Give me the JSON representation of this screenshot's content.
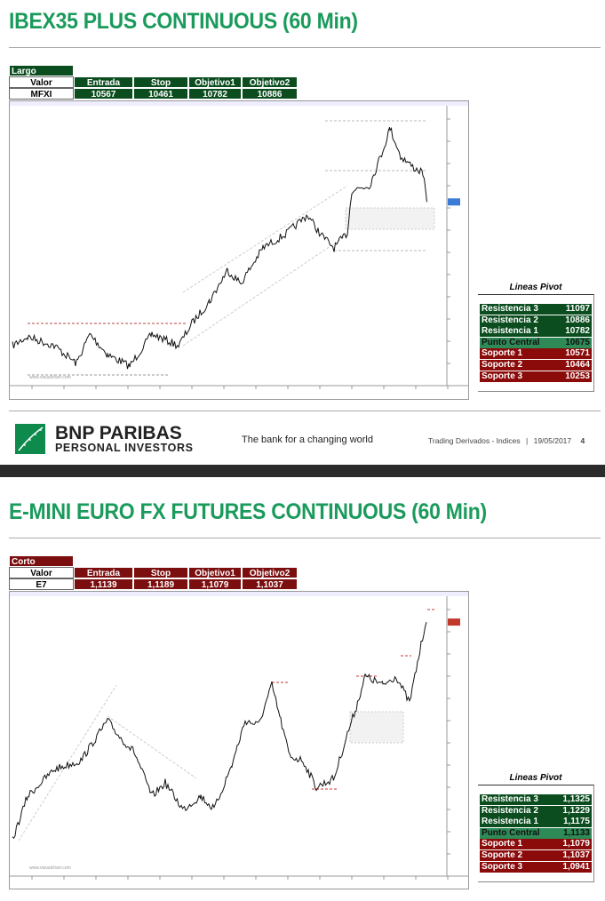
{
  "sections": [
    {
      "title": "IBEX35 PLUS CONTINUOUS (60 Min)",
      "position": "Largo",
      "table": {
        "header": [
          "Valor",
          "Entrada",
          "Stop",
          "Objetivo1",
          "Objetivo2"
        ],
        "row": [
          "MFXI",
          "10567",
          "10461",
          "10782",
          "10886"
        ]
      },
      "watermark": "www.visualchart.com",
      "pivot": {
        "title": "Lineas Pivot",
        "rows": [
          [
            "Resistencia 3",
            "11097"
          ],
          [
            "Resistencia 2",
            "10886"
          ],
          [
            "Resistencia 1",
            "10782"
          ],
          [
            "Punto Central",
            "10675"
          ],
          [
            "Soporte 1",
            "10571"
          ],
          [
            "Soporte 2",
            "10464"
          ],
          [
            "Soporte 3",
            "10253"
          ]
        ]
      }
    },
    {
      "title": "E-MINI EURO FX FUTURES CONTINUOUS (60 Min)",
      "position": "Corto",
      "table": {
        "header": [
          "Valor",
          "Entrada",
          "Stop",
          "Objetivo1",
          "Objetivo2"
        ],
        "row": [
          "E7",
          "1,1139",
          "1,1189",
          "1,1079",
          "1,1037"
        ]
      },
      "watermark": "www.visualchart.com",
      "pivot": {
        "title": "Lineas Pivot",
        "rows": [
          [
            "Resistencia 3",
            "1,1325"
          ],
          [
            "Resistencia 2",
            "1,1229"
          ],
          [
            "Resistencia 1",
            "1,1175"
          ],
          [
            "Punto Central",
            "1,1133"
          ],
          [
            "Soporte 1",
            "1,1079"
          ],
          [
            "Soporte 2",
            "1,1037"
          ],
          [
            "Soporte 3",
            "1,0941"
          ]
        ]
      }
    }
  ],
  "footer": {
    "brand": "BNP PARIBAS",
    "subbrand": "PERSONAL INVESTORS",
    "tagline": "The bank for a changing world",
    "info": "Trading Derivados - Indices",
    "separator": "|",
    "date": "19/05/2017",
    "page": "4"
  }
}
